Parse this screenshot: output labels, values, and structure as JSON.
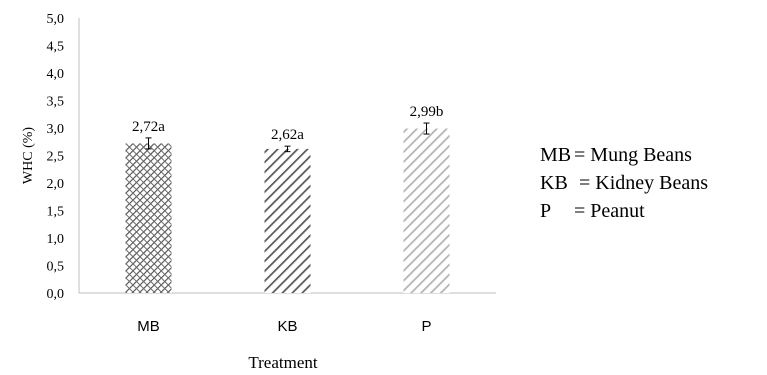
{
  "chart_data": {
    "type": "bar",
    "title": "",
    "xlabel": "Treatment",
    "ylabel": "WHC (%)",
    "ylim": [
      0,
      5
    ],
    "ytick_labels": [
      "0,0",
      "0,5",
      "1,0",
      "1,5",
      "2,0",
      "2,5",
      "3,0",
      "3,5",
      "4,0",
      "4,5",
      "5,0"
    ],
    "categories": [
      "MB",
      "KB",
      "P"
    ],
    "values": [
      2.72,
      2.62,
      2.99
    ],
    "error": [
      0.1,
      0.05,
      0.1
    ],
    "data_labels": [
      "2,72a",
      "2,62a",
      "2,99b"
    ],
    "bar_colors": [
      "#4d4d4d",
      "#595959",
      "#b3b3b3"
    ],
    "grid": false,
    "legend": [
      {
        "abbr": "MB",
        "text": "= Mung Beans"
      },
      {
        "abbr": "KB",
        "text": " = Kidney Beans"
      },
      {
        "abbr": "P",
        "text": "= Peanut"
      }
    ]
  }
}
